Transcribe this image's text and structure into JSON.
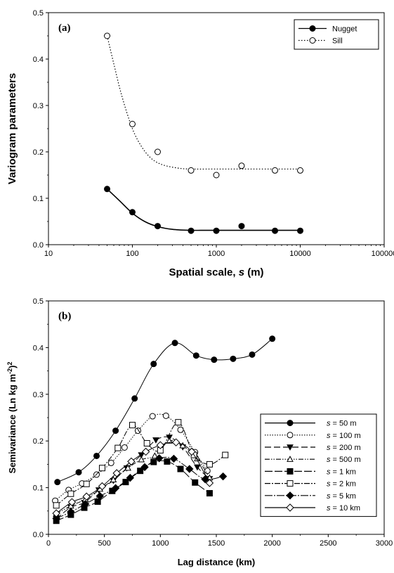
{
  "chart_data": [
    {
      "type": "scatter",
      "panel_label": "(a)",
      "xlabel": "Spatial scale, s (m)",
      "xlabel_parts": [
        "Spatial scale, ",
        "s",
        " (m)"
      ],
      "ylabel": "Variogram parameters",
      "xscale": "log",
      "xlim": [
        10,
        100000
      ],
      "ylim": [
        0,
        0.5
      ],
      "x_ticks": [
        10,
        100,
        1000,
        10000,
        100000
      ],
      "x_tick_labels": [
        "10",
        "100",
        "1000",
        "10000",
        "100000"
      ],
      "y_ticks": [
        0,
        0.1,
        0.2,
        0.3,
        0.4,
        0.5
      ],
      "y_tick_labels": [
        "0.0",
        "0.1",
        "0.2",
        "0.3",
        "0.4",
        "0.5"
      ],
      "grid": false,
      "legend_position": "top-right",
      "series": [
        {
          "name": "Nugget",
          "marker": "filled-circle",
          "line": "solid",
          "x": [
            50,
            100,
            200,
            500,
            1000,
            2000,
            5000,
            10000
          ],
          "y": [
            0.12,
            0.07,
            0.04,
            0.03,
            0.03,
            0.04,
            0.03,
            0.03
          ],
          "fit": [
            [
              50,
              0.12
            ],
            [
              70,
              0.095
            ],
            [
              100,
              0.068
            ],
            [
              140,
              0.05
            ],
            [
              200,
              0.039
            ],
            [
              300,
              0.033
            ],
            [
              500,
              0.031
            ],
            [
              1000,
              0.031
            ],
            [
              10000,
              0.031
            ]
          ]
        },
        {
          "name": "Sill",
          "marker": "open-circle",
          "line": "dotted",
          "x": [
            50,
            100,
            200,
            500,
            1000,
            2000,
            5000,
            10000
          ],
          "y": [
            0.45,
            0.26,
            0.2,
            0.16,
            0.15,
            0.17,
            0.16,
            0.16
          ],
          "fit": [
            [
              50,
              0.45
            ],
            [
              60,
              0.39
            ],
            [
              75,
              0.32
            ],
            [
              100,
              0.25
            ],
            [
              130,
              0.21
            ],
            [
              170,
              0.185
            ],
            [
              230,
              0.172
            ],
            [
              350,
              0.165
            ],
            [
              500,
              0.163
            ],
            [
              1000,
              0.163
            ],
            [
              10000,
              0.163
            ]
          ]
        }
      ]
    },
    {
      "type": "line",
      "panel_label": "(b)",
      "xlabel": "Lag distance (km)",
      "ylabel": "Semivariance (Ln kg m-2)2",
      "ylabel_parts": [
        "Semivariance (Ln kg m",
        "-2",
        ")",
        "2"
      ],
      "xlim": [
        0,
        3000
      ],
      "ylim": [
        0,
        0.5
      ],
      "x_ticks": [
        0,
        500,
        1000,
        1500,
        2000,
        2500,
        3000
      ],
      "x_tick_labels": [
        "0",
        "500",
        "1000",
        "1500",
        "2000",
        "2500",
        "3000"
      ],
      "y_ticks": [
        0,
        0.1,
        0.2,
        0.3,
        0.4,
        0.5
      ],
      "y_tick_labels": [
        "0.0",
        "0.1",
        "0.2",
        "0.3",
        "0.4",
        "0.5"
      ],
      "grid": false,
      "legend_position": "bottom-right",
      "series": [
        {
          "name": "s = 50 m",
          "name_parts": [
            "s",
            " = 50 m"
          ],
          "marker": "filled-circle",
          "dash": "",
          "x": [
            80,
            270,
            430,
            600,
            770,
            940,
            1130,
            1320,
            1480,
            1650,
            1820,
            2000
          ],
          "y": [
            0.112,
            0.133,
            0.168,
            0.222,
            0.291,
            0.365,
            0.41,
            0.383,
            0.374,
            0.376,
            0.385,
            0.419
          ]
        },
        {
          "name": "s = 100 m",
          "name_parts": [
            "s",
            " = 100 m"
          ],
          "marker": "open-circle",
          "dash": "1.5,2",
          "x": [
            60,
            180,
            300,
            430,
            560,
            680,
            800,
            930,
            1050,
            1180,
            1310,
            1420
          ],
          "y": [
            0.072,
            0.095,
            0.109,
            0.128,
            0.153,
            0.186,
            0.222,
            0.253,
            0.254,
            0.224,
            0.176,
            0.136
          ]
        },
        {
          "name": "s = 200 m",
          "name_parts": [
            "s",
            " = 200 m"
          ],
          "marker": "filled-triangle-down",
          "dash": "9,4",
          "x": [
            70,
            200,
            320,
            450,
            580,
            700,
            830,
            960,
            1080,
            1200,
            1330,
            1440
          ],
          "y": [
            0.033,
            0.058,
            0.068,
            0.095,
            0.115,
            0.142,
            0.17,
            0.202,
            0.208,
            0.187,
            0.144,
            0.119
          ]
        },
        {
          "name": "s = 500 m",
          "name_parts": [
            "s",
            " = 500 m"
          ],
          "marker": "open-triangle-up",
          "dash": "7,2,1.5,2,1.5,2",
          "x": [
            70,
            200,
            330,
            460,
            580,
            710,
            830,
            950,
            1080,
            1200,
            1330,
            1440
          ],
          "y": [
            0.044,
            0.061,
            0.075,
            0.097,
            0.117,
            0.142,
            0.16,
            0.168,
            0.2,
            0.19,
            0.162,
            0.121
          ]
        },
        {
          "name": "s = 1 km",
          "name_parts": [
            "s",
            " = 1 km"
          ],
          "marker": "filled-square",
          "dash": "11,3",
          "x": [
            70,
            200,
            320,
            440,
            570,
            690,
            820,
            940,
            1060,
            1180,
            1310,
            1440
          ],
          "y": [
            0.029,
            0.042,
            0.057,
            0.07,
            0.093,
            0.112,
            0.136,
            0.155,
            0.156,
            0.14,
            0.111,
            0.088
          ]
        },
        {
          "name": "s = 2 km",
          "name_parts": [
            "s",
            " = 2 km"
          ],
          "marker": "open-square",
          "dash": "8,2,2,2",
          "x": [
            70,
            200,
            340,
            480,
            620,
            750,
            880,
            1000,
            1160,
            1300,
            1440,
            1580
          ],
          "y": [
            0.062,
            0.087,
            0.108,
            0.142,
            0.185,
            0.234,
            0.195,
            0.18,
            0.24,
            0.17,
            0.15,
            0.17
          ]
        },
        {
          "name": "s = 5 km",
          "name_parts": [
            "s",
            " = 5 km"
          ],
          "marker": "filled-diamond",
          "dash": "11,2,2,2",
          "x": [
            70,
            200,
            330,
            460,
            600,
            730,
            860,
            990,
            1120,
            1260,
            1400,
            1560
          ],
          "y": [
            0.034,
            0.048,
            0.065,
            0.082,
            0.099,
            0.121,
            0.144,
            0.163,
            0.162,
            0.14,
            0.118,
            0.124
          ]
        },
        {
          "name": "s = 10 km",
          "name_parts": [
            "s",
            " = 10 km"
          ],
          "marker": "open-diamond",
          "dash": "",
          "x": [
            70,
            210,
            340,
            480,
            610,
            740,
            870,
            1000,
            1140,
            1280,
            1440
          ],
          "y": [
            0.045,
            0.069,
            0.081,
            0.103,
            0.131,
            0.156,
            0.177,
            0.191,
            0.197,
            0.177,
            0.11
          ]
        }
      ]
    }
  ]
}
